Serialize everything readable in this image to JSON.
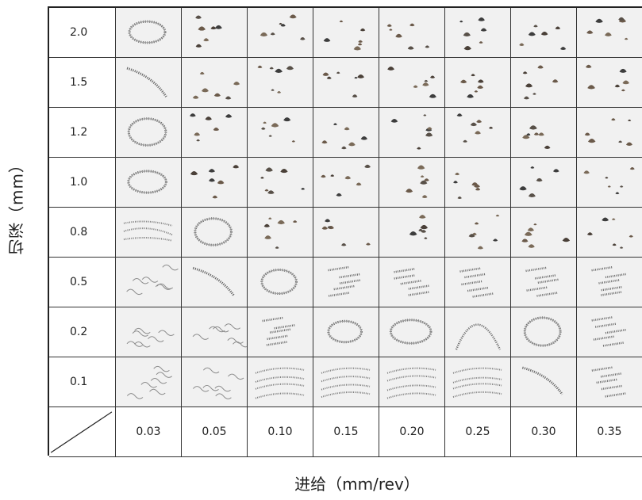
{
  "y_axis_title": "切深（mm）",
  "x_axis_title": "进给（mm/rev）",
  "depths": [
    "2.0",
    "1.5",
    "1.2",
    "1.0",
    "0.8",
    "0.5",
    "0.2",
    "0.1"
  ],
  "feeds": [
    "0.03",
    "0.05",
    "0.10",
    "0.15",
    "0.20",
    "0.25",
    "0.30",
    "0.35"
  ],
  "chip_types": [
    [
      "coil",
      "fragments",
      "fragments",
      "fragments",
      "fragments",
      "fragments",
      "fragments",
      "fragments"
    ],
    [
      "long-spiral",
      "fragments",
      "fragments",
      "fragments",
      "fragments",
      "fragments",
      "fragments",
      "fragments"
    ],
    [
      "coil",
      "fragments",
      "fragments",
      "fragments",
      "fragments",
      "fragments",
      "fragments",
      "fragments"
    ],
    [
      "coil",
      "fragments",
      "fragments",
      "fragments",
      "fragments",
      "fragments",
      "fragments",
      "fragments"
    ],
    [
      "tangled-spiral",
      "coil",
      "fragments",
      "fragments",
      "fragments",
      "fragments",
      "fragments",
      "fragments"
    ],
    [
      "tangled-wire",
      "long-spiral",
      "coil",
      "short-spirals",
      "short-spirals",
      "short-spirals",
      "short-spirals",
      "short-spirals"
    ],
    [
      "tangled-wire",
      "tangled-wire",
      "short-spirals",
      "coil",
      "coil",
      "arch",
      "coil",
      "short-spirals"
    ],
    [
      "tangled-wire",
      "tangled-wire",
      "wavy-spirals",
      "wavy-spirals",
      "wavy-spirals",
      "wavy-spirals",
      "long-spiral",
      "short-spirals"
    ]
  ]
}
